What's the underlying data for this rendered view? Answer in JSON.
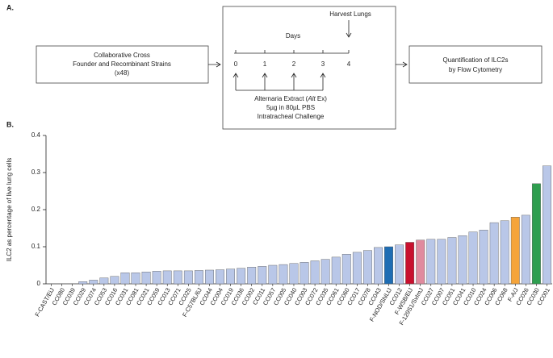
{
  "diagram": {
    "panel_a": "A.",
    "panel_b": "B.",
    "left_box": [
      "Collaborative Cross",
      "Founder and Recombinant Strains",
      "(x48)"
    ],
    "harvest": "Harvest Lungs",
    "days": "Days",
    "day_labels": [
      "0",
      "1",
      "2",
      "3",
      "4"
    ],
    "treatment_pre": "Alternaria Extract (",
    "treatment_italic": "Alt",
    "treatment_post": " Ex)",
    "treatment_lines": [
      "5µg in 80µL PBS",
      "Intratracheal Challenge"
    ],
    "right_box": [
      "Quantification of ILC2s",
      "by Flow Cytometry"
    ]
  },
  "chart_data": {
    "type": "bar",
    "ylabel": "ILC2 as percentage of live lung cells",
    "categories": [
      "F-CAST/EiJ",
      "CC080",
      "CC039",
      "CC029",
      "CC074",
      "CC053",
      "CC016",
      "CC031",
      "CC081",
      "CC021",
      "CC059",
      "CC013",
      "CC071",
      "CC025",
      "F-C57BL/6J",
      "CC044",
      "CC004",
      "CC019",
      "CC036",
      "CC002",
      "CC011",
      "CC057",
      "CC005",
      "CC040",
      "CC003",
      "CC072",
      "CC035",
      "CC061",
      "CC060",
      "CC017",
      "CC078",
      "CC043",
      "F-NOD/ShiLtJ",
      "CC012",
      "F-WSB/EiJ",
      "F-129S1/SvImJ",
      "CC027",
      "CC007",
      "CC051",
      "CC041",
      "CC010",
      "CC024",
      "CC006",
      "CC068",
      "F-A/J",
      "CC026",
      "CC030",
      "CC001"
    ],
    "values": [
      0,
      0,
      0,
      0.006,
      0.01,
      0.016,
      0.02,
      0.03,
      0.03,
      0.032,
      0.034,
      0.035,
      0.035,
      0.035,
      0.036,
      0.037,
      0.038,
      0.04,
      0.042,
      0.045,
      0.047,
      0.05,
      0.052,
      0.055,
      0.058,
      0.062,
      0.066,
      0.072,
      0.08,
      0.085,
      0.09,
      0.098,
      0.1,
      0.105,
      0.112,
      0.118,
      0.12,
      0.12,
      0.125,
      0.13,
      0.14,
      0.145,
      0.165,
      0.17,
      0.18,
      0.185,
      0.27,
      0.318
    ],
    "colors": [
      "#b9c7e8",
      "#b9c7e8",
      "#b9c7e8",
      "#b9c7e8",
      "#b9c7e8",
      "#b9c7e8",
      "#b9c7e8",
      "#b9c7e8",
      "#b9c7e8",
      "#b9c7e8",
      "#b9c7e8",
      "#b9c7e8",
      "#b9c7e8",
      "#b9c7e8",
      "#b9c7e8",
      "#b9c7e8",
      "#b9c7e8",
      "#b9c7e8",
      "#b9c7e8",
      "#b9c7e8",
      "#b9c7e8",
      "#b9c7e8",
      "#b9c7e8",
      "#b9c7e8",
      "#b9c7e8",
      "#b9c7e8",
      "#b9c7e8",
      "#b9c7e8",
      "#b9c7e8",
      "#b9c7e8",
      "#b9c7e8",
      "#b9c7e8",
      "#1f6db3",
      "#b9c7e8",
      "#c8102e",
      "#e08a9e",
      "#b9c7e8",
      "#b9c7e8",
      "#b9c7e8",
      "#b9c7e8",
      "#b9c7e8",
      "#b9c7e8",
      "#b9c7e8",
      "#b9c7e8",
      "#f5a43a",
      "#b9c7e8",
      "#2e9e4f",
      "#b9c7e8"
    ],
    "ylim": [
      0,
      0.4
    ],
    "yticks": [
      0,
      0.1,
      0.2,
      0.3,
      0.4
    ]
  }
}
